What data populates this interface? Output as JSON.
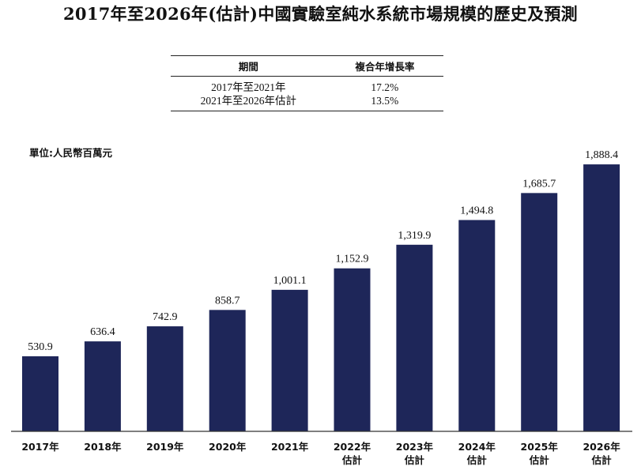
{
  "title": "2017年至2026年(估計)中國實驗室純水系統市場規模的歷史及預測",
  "cagr_table": {
    "headers": [
      "期間",
      "複合年增長率"
    ],
    "rows": [
      {
        "period": "2017年至2021年",
        "rate": "17.2%"
      },
      {
        "period": "2021年至2026年估計",
        "rate": "13.5%"
      }
    ]
  },
  "unit_label": "單位:人民幣百萬元",
  "colors": {
    "bar": "#1e2659",
    "axis": "#333333"
  },
  "chart_data": {
    "type": "bar",
    "categories": [
      "2017年",
      "2018年",
      "2019年",
      "2020年",
      "2021年",
      "2022年 估計",
      "2023年 估計",
      "2024年 估計",
      "2025年 估計",
      "2026年 估計"
    ],
    "tick_labels": [
      [
        "2017年"
      ],
      [
        "2018年"
      ],
      [
        "2019年"
      ],
      [
        "2020年"
      ],
      [
        "2021年"
      ],
      [
        "2022年",
        "估計"
      ],
      [
        "2023年",
        "估計"
      ],
      [
        "2024年",
        "估計"
      ],
      [
        "2025年",
        "估計"
      ],
      [
        "2026年",
        "估計"
      ]
    ],
    "values": [
      530.9,
      636.4,
      742.9,
      858.7,
      1001.1,
      1152.9,
      1319.9,
      1494.8,
      1685.7,
      1888.4
    ],
    "value_labels": [
      "530.9",
      "636.4",
      "742.9",
      "858.7",
      "1,001.1",
      "1,152.9",
      "1,319.9",
      "1,494.8",
      "1,685.7",
      "1,888.4"
    ],
    "ylim": [
      0,
      1900
    ],
    "grid": false,
    "legend": "none"
  }
}
